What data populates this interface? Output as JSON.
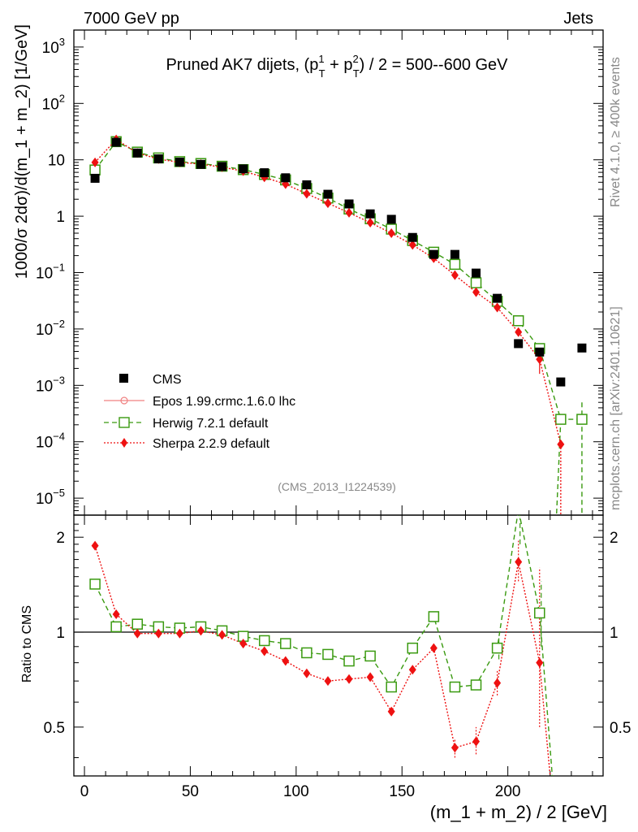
{
  "header": {
    "left": "7000 GeV pp",
    "right": "Jets",
    "side_upper": "Rivet 4.1.0, ≥ 400k events",
    "side_lower": "mcplots.cern.ch [arXiv:2401.10621]"
  },
  "chart_data": {
    "type": "scatter",
    "title": "Pruned AK7 dijets, (p_T^1 + p_T^2) / 2 = 500--600 GeV",
    "title_parts": {
      "prefix": "Pruned AK7 dijets, (p",
      "sub1": "T",
      "sup1": "1",
      "plus": " + p",
      "sub2": "T",
      "sup2": "2",
      "suffix": ") / 2 = 500--600 GeV"
    },
    "analysis_id": "(CMS_2013_I1224539)",
    "xlabel": "(m_1 + m_2) / 2 [GeV]",
    "ylabel": "1000/σ  2dσ)/d(m_1 + m_2) [1/GeV]",
    "ratio_ylabel": "Ratio to CMS",
    "xlim": [
      -5,
      245
    ],
    "ylim": [
      5e-06,
      2000
    ],
    "yscale": "log",
    "ratio_ylim": [
      0.35,
      2.35
    ],
    "ratio_yscale": "log",
    "x_ticks": [
      0,
      50,
      100,
      150,
      200
    ],
    "x_tick_labels": [
      "0",
      "50",
      "100",
      "150",
      "200"
    ],
    "y_tick_labels": [
      {
        "base": "10",
        "exp": "3"
      },
      {
        "base": "10",
        "exp": "2"
      },
      {
        "base": "10",
        "exp": ""
      },
      {
        "base": "1",
        "exp": ""
      },
      {
        "base": "10",
        "exp": "−1"
      },
      {
        "base": "10",
        "exp": "−2"
      },
      {
        "base": "10",
        "exp": "−3"
      },
      {
        "base": "10",
        "exp": "−4"
      },
      {
        "base": "10",
        "exp": "−5"
      }
    ],
    "y_tick_values": [
      1000,
      100,
      10,
      1,
      0.1,
      0.01,
      0.001,
      0.0001,
      1e-05
    ],
    "ratio_ticks": [
      0.5,
      1,
      2
    ],
    "ratio_tick_labels": [
      "0.5",
      "1",
      "2"
    ],
    "legend_position": "lower-left",
    "x": [
      5,
      15,
      25,
      35,
      45,
      55,
      65,
      75,
      85,
      95,
      105,
      115,
      125,
      135,
      145,
      155,
      165,
      175,
      185,
      195,
      205,
      215,
      225,
      235
    ],
    "series": [
      {
        "name": "CMS",
        "style": "square-black",
        "color": "#000000",
        "values": [
          4.7,
          20.5,
          13.2,
          10.4,
          9.1,
          8.3,
          7.6,
          6.9,
          5.9,
          4.8,
          3.6,
          2.45,
          1.65,
          1.1,
          0.88,
          0.42,
          0.21,
          0.21,
          0.098,
          0.035,
          0.0055,
          0.0039,
          0.00115,
          0.0046
        ]
      },
      {
        "name": "Epos 1.99.crmc.1.6.0 lhc",
        "style": "circle-open-pink",
        "color": "#f08080",
        "values": []
      },
      {
        "name": "Herwig 7.2.1 default",
        "style": "square-open-green-dashed",
        "color": "#3a9a10",
        "values": [
          6.6,
          21.0,
          13.7,
          10.8,
          9.3,
          8.6,
          7.7,
          6.7,
          5.5,
          4.4,
          3.1,
          2.1,
          1.34,
          0.9,
          0.59,
          0.37,
          0.23,
          0.14,
          0.066,
          0.031,
          0.014,
          0.0045,
          0.00025,
          0.00025
        ],
        "ratio": [
          1.42,
          1.04,
          1.06,
          1.04,
          1.03,
          1.04,
          1.01,
          0.97,
          0.94,
          0.92,
          0.86,
          0.85,
          0.81,
          0.84,
          0.67,
          0.89,
          1.12,
          0.67,
          0.68,
          0.89,
          2.45,
          1.15,
          null,
          null
        ]
      },
      {
        "name": "Sherpa 2.2.9 default",
        "style": "diamond-red-dotted",
        "color": "#ee1111",
        "values": [
          9.0,
          23.0,
          13.2,
          10.3,
          9.0,
          8.4,
          7.4,
          6.3,
          4.9,
          3.7,
          2.5,
          1.7,
          1.15,
          0.77,
          0.5,
          0.31,
          0.18,
          0.09,
          0.045,
          0.024,
          0.0088,
          0.0029,
          9e-05
        ],
        "ratio": [
          1.88,
          1.14,
          0.99,
          0.99,
          0.99,
          1.01,
          0.98,
          0.92,
          0.87,
          0.81,
          0.74,
          0.7,
          0.71,
          0.72,
          0.56,
          0.76,
          0.89,
          0.43,
          0.45,
          0.69,
          1.67,
          0.8,
          null
        ]
      }
    ]
  }
}
